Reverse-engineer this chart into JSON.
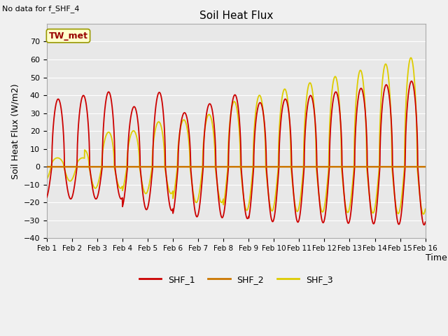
{
  "title": "Soil Heat Flux",
  "ylabel": "Soil Heat Flux (W/m2)",
  "xlabel": "Time",
  "no_data_text": "No data for f_SHF_4",
  "tw_met_label": "TW_met",
  "ylim": [
    -40,
    80
  ],
  "yticks": [
    -40,
    -30,
    -20,
    -10,
    0,
    10,
    20,
    30,
    40,
    50,
    60,
    70
  ],
  "shf1_color": "#cc0000",
  "shf2_color": "#cc7700",
  "shf3_color": "#ddcc00",
  "legend_labels": [
    "SHF_1",
    "SHF_2",
    "SHF_3"
  ],
  "x_tick_labels": [
    "Feb 1",
    "Feb 2",
    "Feb 3",
    "Feb 4",
    "Feb 5",
    "Feb 6",
    "Feb 7",
    "Feb 8",
    "Feb 9",
    "Feb 10",
    "Feb 11",
    "Feb 12",
    "Feb 13",
    "Feb 14",
    "Feb 15",
    "Feb 16"
  ],
  "num_days": 15,
  "points_per_day": 144
}
